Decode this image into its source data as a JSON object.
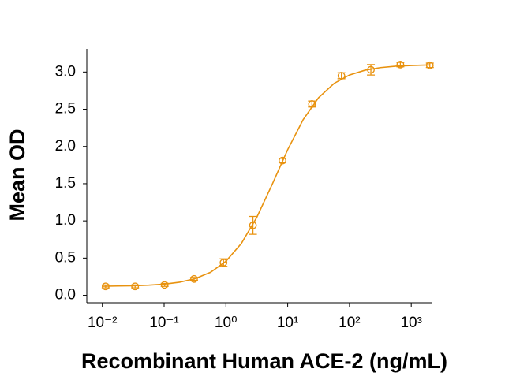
{
  "chart_data": {
    "type": "scatter",
    "xlabel": "Recombinant Human ACE-2 (ng/mL)",
    "ylabel": "Mean OD",
    "xscale": "log",
    "xlim": [
      0.0056,
      2200
    ],
    "ylim": [
      -0.1,
      3.3
    ],
    "xticks": [
      {
        "value": 0.01,
        "label": "10⁻²"
      },
      {
        "value": 0.1,
        "label": "10⁻¹"
      },
      {
        "value": 1,
        "label": "10⁰"
      },
      {
        "value": 10,
        "label": "10¹"
      },
      {
        "value": 100,
        "label": "10²"
      },
      {
        "value": 1000,
        "label": "10³"
      }
    ],
    "yticks": [
      {
        "value": 0,
        "label": "0.0"
      },
      0.5,
      {
        "value": 1,
        "label": "1.0"
      },
      1.5,
      {
        "value": 2,
        "label": "2.0"
      },
      2.5,
      {
        "value": 3,
        "label": "3.0"
      }
    ],
    "series": [
      {
        "type": "scatter",
        "color": "#e8920f",
        "x": [
          0.0113,
          0.0339,
          0.102,
          0.305,
          0.914,
          2.74,
          8.23,
          24.69,
          74.07,
          222.2,
          666.7,
          2000
        ],
        "values": [
          0.12,
          0.12,
          0.14,
          0.22,
          0.44,
          0.94,
          1.81,
          2.57,
          2.95,
          3.03,
          3.1,
          3.09
        ],
        "errors": [
          0.02,
          0.02,
          0.02,
          0.02,
          0.05,
          0.12,
          0.03,
          0.04,
          0.04,
          0.07,
          0.03,
          0.03
        ]
      },
      {
        "type": "line",
        "color": "#e8920f",
        "x": [
          0.01,
          0.01778,
          0.03162,
          0.05623,
          0.1,
          0.1778,
          0.3162,
          0.5623,
          1,
          1.778,
          3.162,
          5.623,
          10,
          17.78,
          31.62,
          56.23,
          100,
          177.8,
          316.2,
          562.3,
          1000,
          1778,
          2000
        ],
        "values": [
          0.122,
          0.125,
          0.128,
          0.136,
          0.15,
          0.176,
          0.223,
          0.309,
          0.457,
          0.697,
          1.048,
          1.492,
          1.957,
          2.36,
          2.655,
          2.846,
          2.96,
          3.024,
          3.059,
          3.078,
          3.088,
          3.094,
          3.095
        ]
      }
    ]
  }
}
